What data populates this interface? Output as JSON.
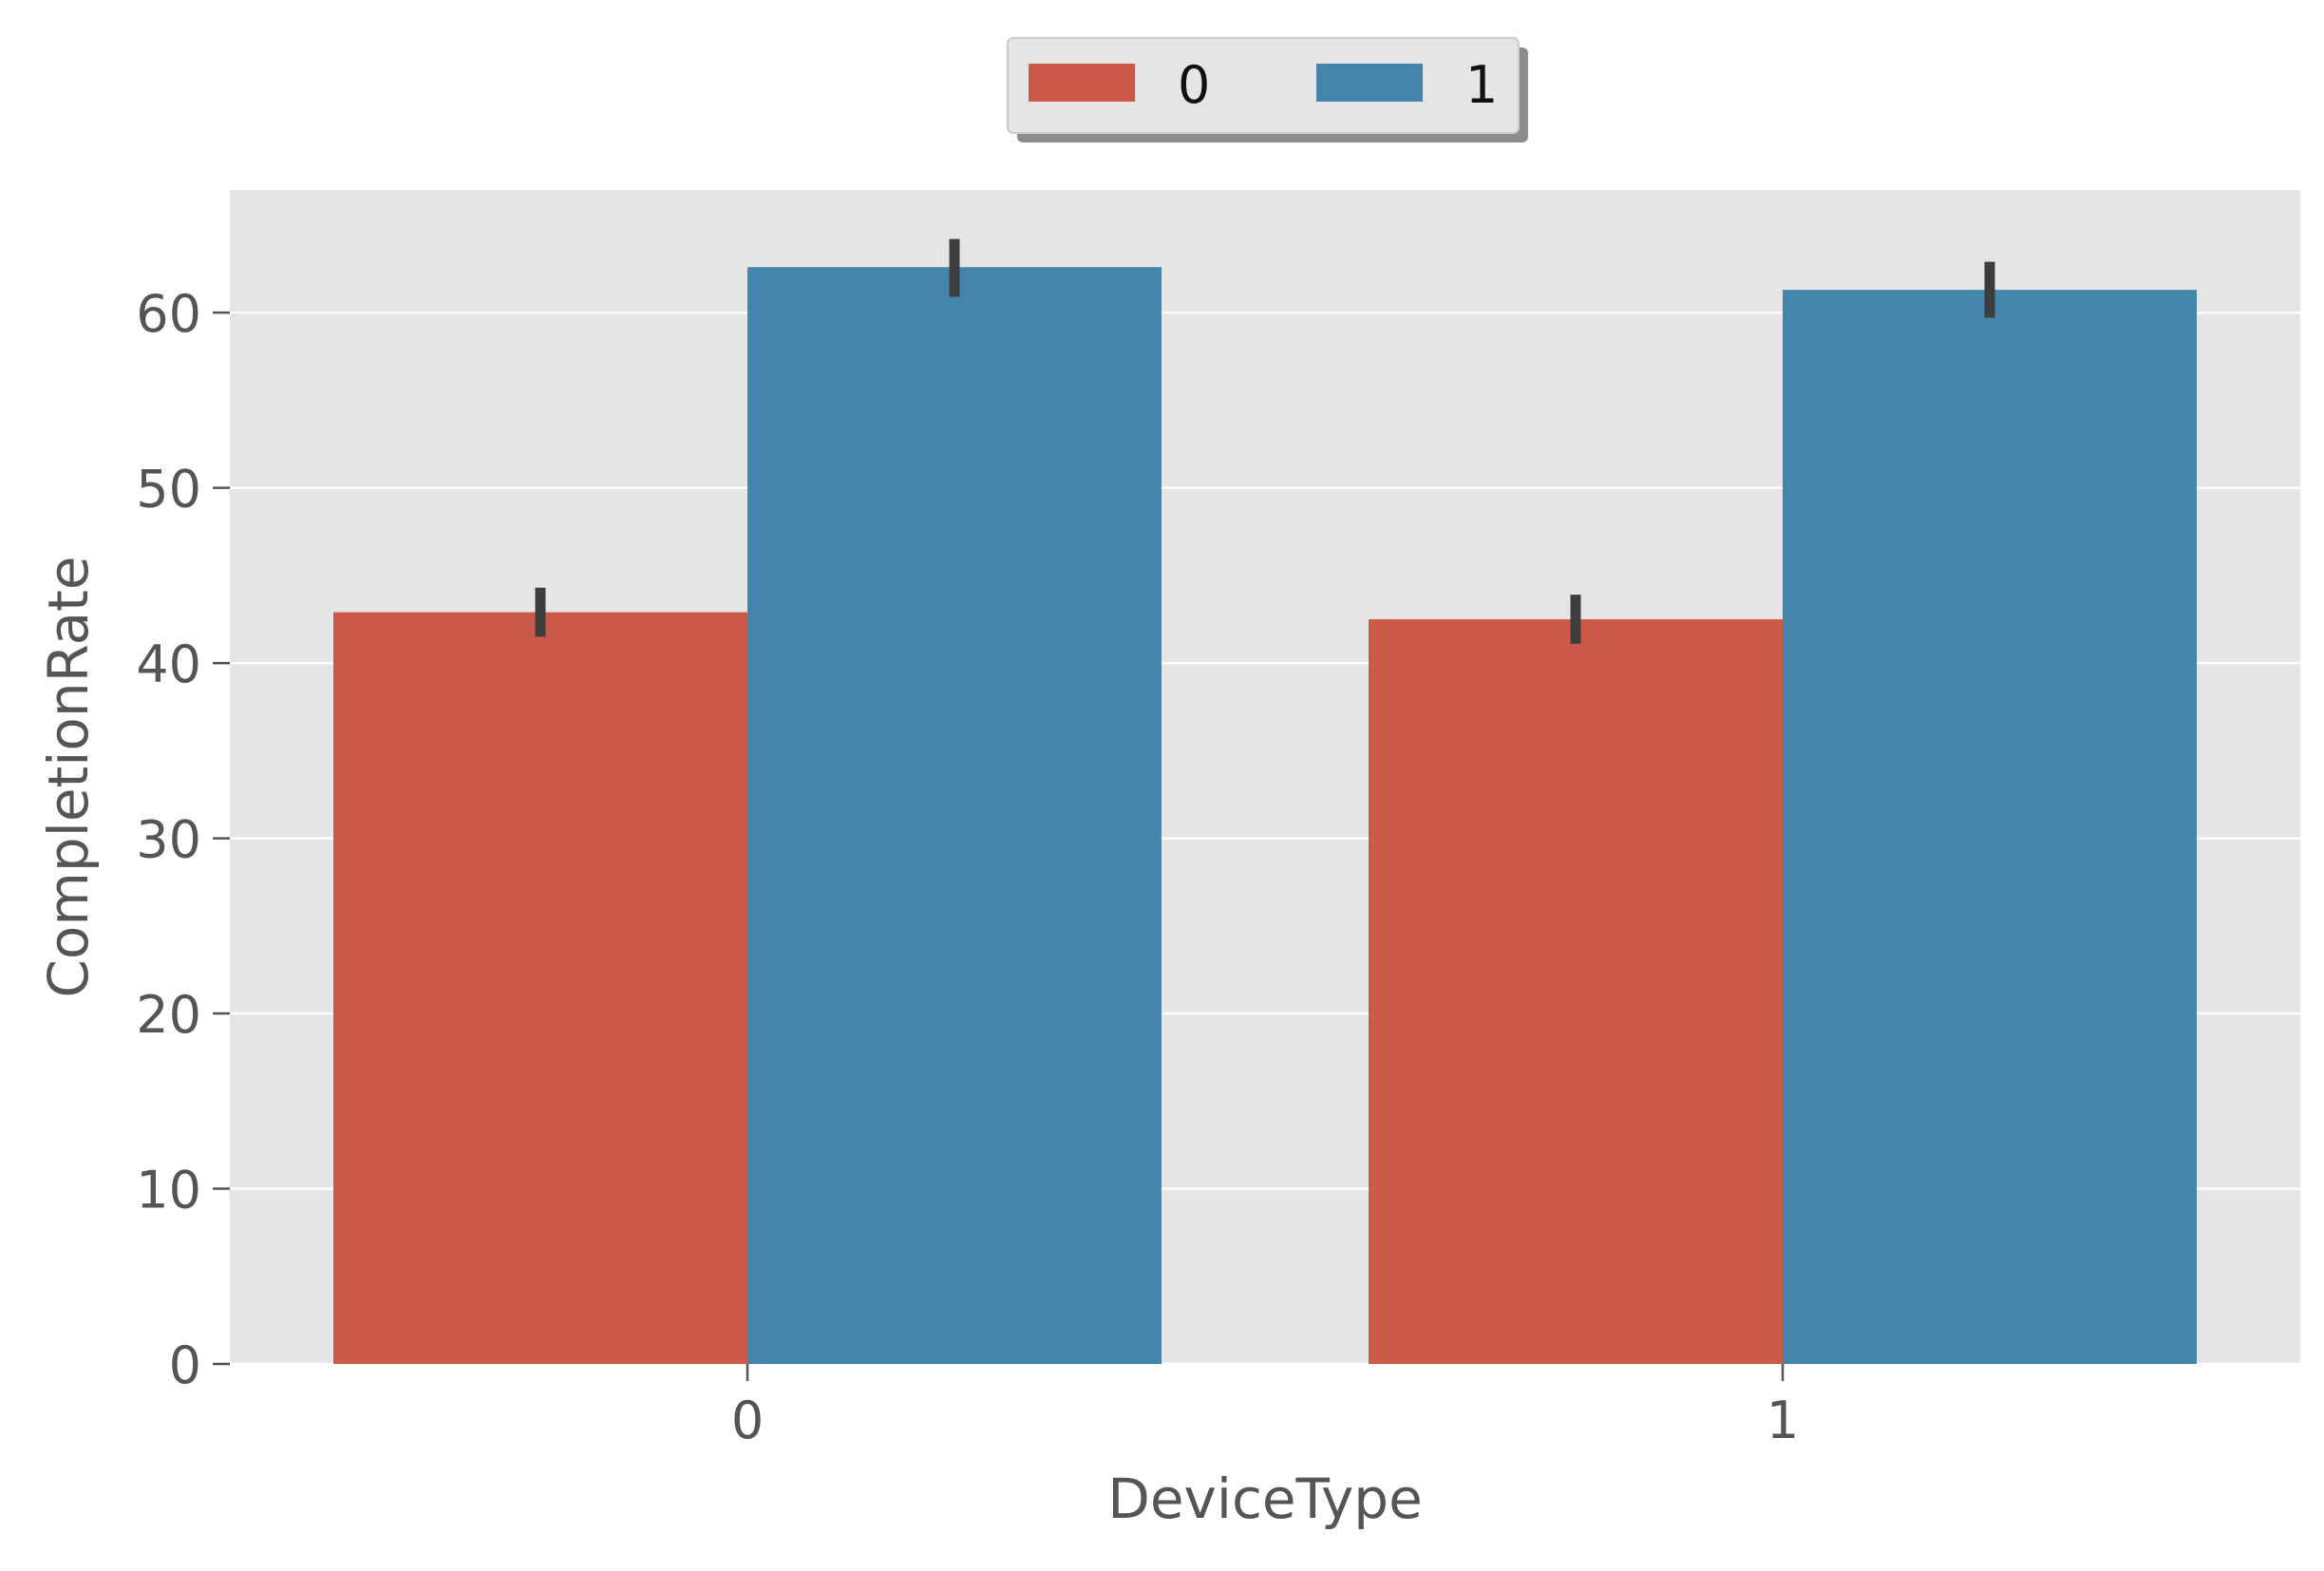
{
  "chart_data": {
    "type": "bar",
    "title": "",
    "xlabel": "DeviceType",
    "ylabel": "CompletionRate",
    "categories": [
      "0",
      "1"
    ],
    "ylim": [
      0,
      67
    ],
    "yticks": [
      0,
      10,
      20,
      30,
      40,
      50,
      60
    ],
    "grid": true,
    "legend": {
      "placement": "top-center",
      "columns": 2,
      "shadow": true
    },
    "series": [
      {
        "name": "0",
        "color": "#cc5a49",
        "values": [
          42.9,
          42.5
        ],
        "ci_low": [
          41.5,
          41.1
        ],
        "ci_high": [
          44.3,
          43.9
        ]
      },
      {
        "name": "1",
        "color": "#4585ab",
        "values": [
          62.6,
          61.3
        ],
        "ci_low": [
          60.9,
          59.7
        ],
        "ci_high": [
          64.2,
          62.9
        ]
      }
    ],
    "colors": {
      "plot_background": "#e5e5e5",
      "grid": "#ffffff",
      "text": "#555555",
      "errorbar": "#3d3d3d"
    }
  }
}
